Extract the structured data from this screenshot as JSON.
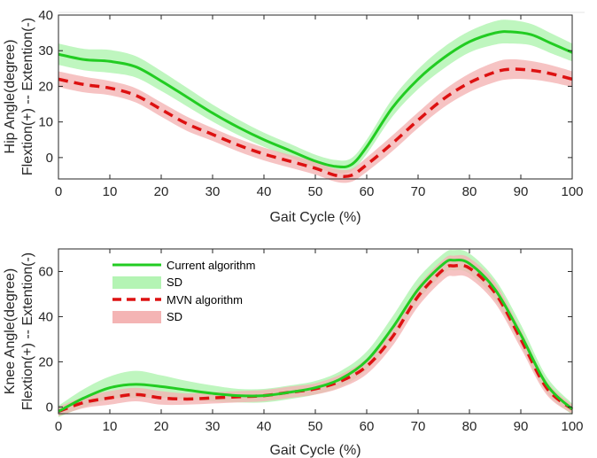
{
  "colors": {
    "current_line": "#22cc22",
    "current_sd": "#b4f4b4",
    "mvn_line": "#dd1111",
    "mvn_sd": "#f4b4b4",
    "axis": "#262626"
  },
  "chart_data": [
    {
      "type": "line",
      "id": "hip",
      "xlabel": "Gait Cycle (%)",
      "ylabel_line1": "Hip Angle(degree)",
      "ylabel_line2": "Flextion(+) -- Extention(-)",
      "xlim": [
        0,
        100
      ],
      "ylim": [
        -6,
        40
      ],
      "xticks": [
        0,
        10,
        20,
        30,
        40,
        50,
        60,
        70,
        80,
        90,
        100
      ],
      "yticks": [
        0,
        10,
        20,
        30,
        40
      ],
      "grid": false,
      "x": [
        0,
        5,
        10,
        15,
        20,
        25,
        30,
        35,
        40,
        45,
        50,
        54,
        57,
        60,
        65,
        70,
        75,
        80,
        85,
        88,
        92,
        96,
        100
      ],
      "series": [
        {
          "name": "Current algorithm",
          "style": "solid",
          "values": [
            29.0,
            27.5,
            27.0,
            25.5,
            21.5,
            17.0,
            12.5,
            8.5,
            5.0,
            2.0,
            -1.0,
            -2.5,
            -2.0,
            3.0,
            14.0,
            22.0,
            28.0,
            32.5,
            35.0,
            35.3,
            34.5,
            32.0,
            29.5
          ],
          "sd": [
            3.0,
            3.0,
            3.2,
            3.0,
            2.8,
            2.6,
            2.4,
            2.2,
            2.0,
            1.9,
            1.8,
            1.8,
            1.8,
            2.0,
            2.5,
            2.8,
            3.0,
            3.0,
            3.3,
            3.3,
            3.0,
            2.8,
            2.5
          ]
        },
        {
          "name": "MVN algorithm",
          "style": "dashed",
          "values": [
            22.0,
            20.5,
            19.5,
            17.5,
            13.5,
            9.5,
            6.5,
            3.5,
            1.0,
            -1.0,
            -3.0,
            -5.0,
            -5.0,
            -2.0,
            4.0,
            10.5,
            16.5,
            21.0,
            24.0,
            24.8,
            24.5,
            23.5,
            22.0
          ],
          "sd": [
            2.2,
            2.2,
            2.0,
            2.0,
            2.0,
            2.0,
            1.8,
            1.8,
            1.8,
            1.8,
            1.8,
            1.8,
            1.8,
            2.0,
            2.2,
            2.2,
            2.4,
            2.6,
            2.8,
            2.8,
            2.6,
            2.4,
            2.2
          ]
        }
      ]
    },
    {
      "type": "line",
      "id": "knee",
      "xlabel": "Gait Cycle (%)",
      "ylabel_line1": "Knee Angle(degree)",
      "ylabel_line2": "Flextion(+) -- Extention(-)",
      "xlim": [
        0,
        100
      ],
      "ylim": [
        -3,
        70
      ],
      "xticks": [
        0,
        10,
        20,
        30,
        40,
        50,
        60,
        70,
        80,
        90,
        100
      ],
      "yticks": [
        0,
        20,
        40,
        60
      ],
      "grid": false,
      "legend": {
        "placement": "top-left",
        "entries": [
          "Current algorithm",
          "SD",
          "MVN algorithm",
          "SD"
        ]
      },
      "x": [
        0,
        5,
        10,
        15,
        20,
        25,
        30,
        35,
        40,
        45,
        50,
        55,
        60,
        65,
        70,
        75,
        77,
        80,
        85,
        90,
        95,
        100
      ],
      "series": [
        {
          "name": "Current algorithm",
          "style": "solid",
          "values": [
            -2.0,
            4.0,
            8.5,
            10.0,
            9.0,
            7.5,
            6.0,
            5.0,
            5.0,
            6.5,
            8.5,
            12.5,
            20.5,
            35.0,
            52.0,
            63.5,
            65.0,
            63.5,
            52.0,
            32.0,
            10.0,
            -1.0
          ],
          "sd": [
            2.5,
            4.0,
            5.0,
            6.0,
            5.0,
            4.0,
            3.5,
            3.0,
            3.0,
            3.0,
            3.0,
            3.5,
            4.0,
            5.0,
            5.0,
            4.5,
            4.5,
            4.5,
            4.5,
            4.5,
            3.5,
            2.5
          ]
        },
        {
          "name": "MVN algorithm",
          "style": "dashed",
          "values": [
            -2.0,
            2.0,
            4.0,
            5.5,
            4.0,
            3.5,
            4.0,
            4.5,
            5.0,
            6.5,
            8.0,
            11.5,
            18.0,
            31.0,
            49.0,
            61.0,
            62.5,
            61.5,
            50.5,
            30.0,
            8.5,
            -1.0
          ],
          "sd": [
            2.0,
            2.5,
            3.0,
            3.0,
            3.0,
            2.5,
            2.5,
            2.5,
            2.5,
            2.5,
            2.5,
            3.0,
            3.5,
            4.0,
            4.5,
            4.5,
            4.5,
            4.5,
            4.5,
            4.0,
            3.0,
            2.0
          ]
        }
      ]
    }
  ]
}
